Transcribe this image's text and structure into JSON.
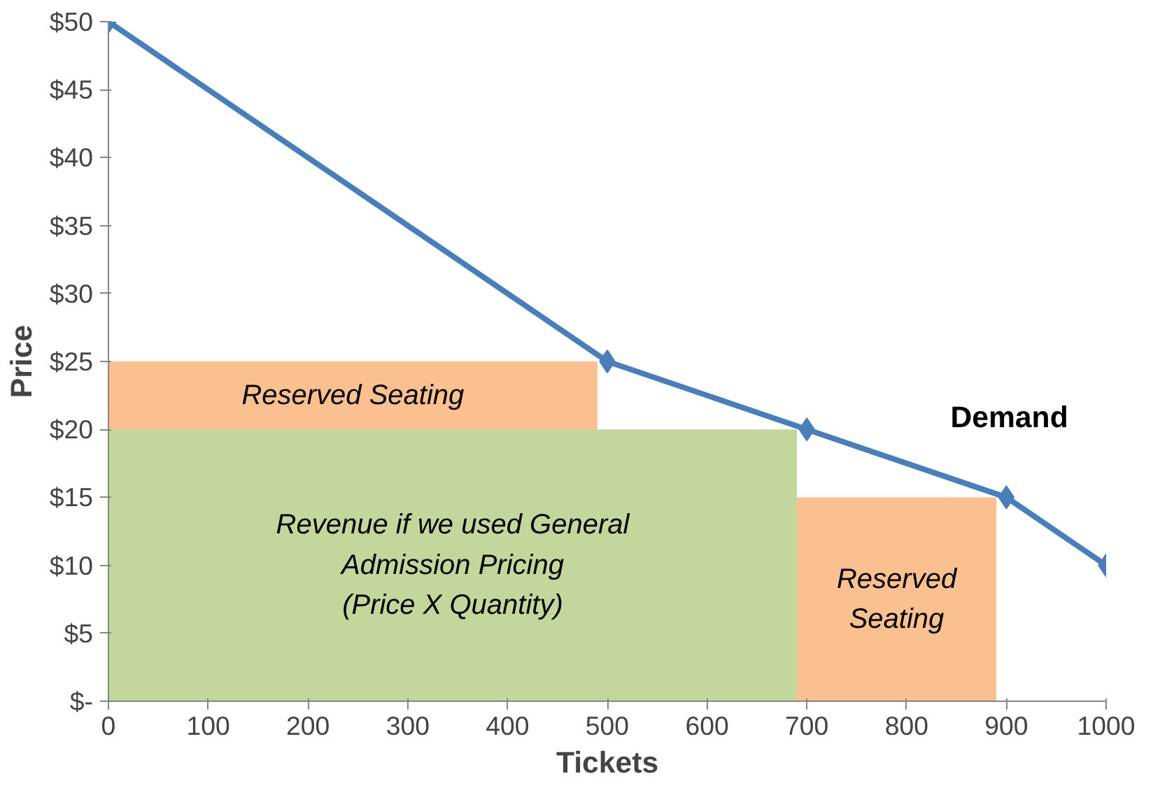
{
  "chart_data": {
    "type": "line",
    "xlabel": "Tickets",
    "ylabel": "Price",
    "xlim": [
      0,
      1000
    ],
    "ylim": [
      0,
      50
    ],
    "xticks": [
      0,
      100,
      200,
      300,
      400,
      500,
      600,
      700,
      800,
      900,
      1000
    ],
    "yticks": [
      {
        "value": 0,
        "label": "$-"
      },
      {
        "value": 5,
        "label": "$5"
      },
      {
        "value": 10,
        "label": "$10"
      },
      {
        "value": 15,
        "label": "$15"
      },
      {
        "value": 20,
        "label": "$20"
      },
      {
        "value": 25,
        "label": "$25"
      },
      {
        "value": 30,
        "label": "$30"
      },
      {
        "value": 35,
        "label": "$35"
      },
      {
        "value": 40,
        "label": "$40"
      },
      {
        "value": 45,
        "label": "$45"
      },
      {
        "value": 50,
        "label": "$50"
      }
    ],
    "grid": false,
    "legend": false,
    "line_style": "solid",
    "series": [
      {
        "type": "area",
        "color": "#fac090",
        "x": [
          0,
          490
        ],
        "values": [
          25,
          25
        ]
      },
      {
        "type": "area",
        "color": "#c3d69b",
        "x": [
          0,
          690
        ],
        "values": [
          20,
          20
        ]
      },
      {
        "type": "area",
        "color": "#fac090",
        "x": [
          690,
          890
        ],
        "values": [
          15,
          15
        ]
      },
      {
        "name": "Demand",
        "color": "#4a7ebb",
        "marker": "diamond",
        "x": [
          0,
          500,
          700,
          900,
          1000
        ],
        "values": [
          50,
          25,
          20,
          15,
          10
        ]
      }
    ],
    "annotations": [
      "Reserved Seating",
      "Revenue if we used General\nAdmission Pricing\n(Price X Quantity)",
      "Reserved\nSeating"
    ]
  }
}
